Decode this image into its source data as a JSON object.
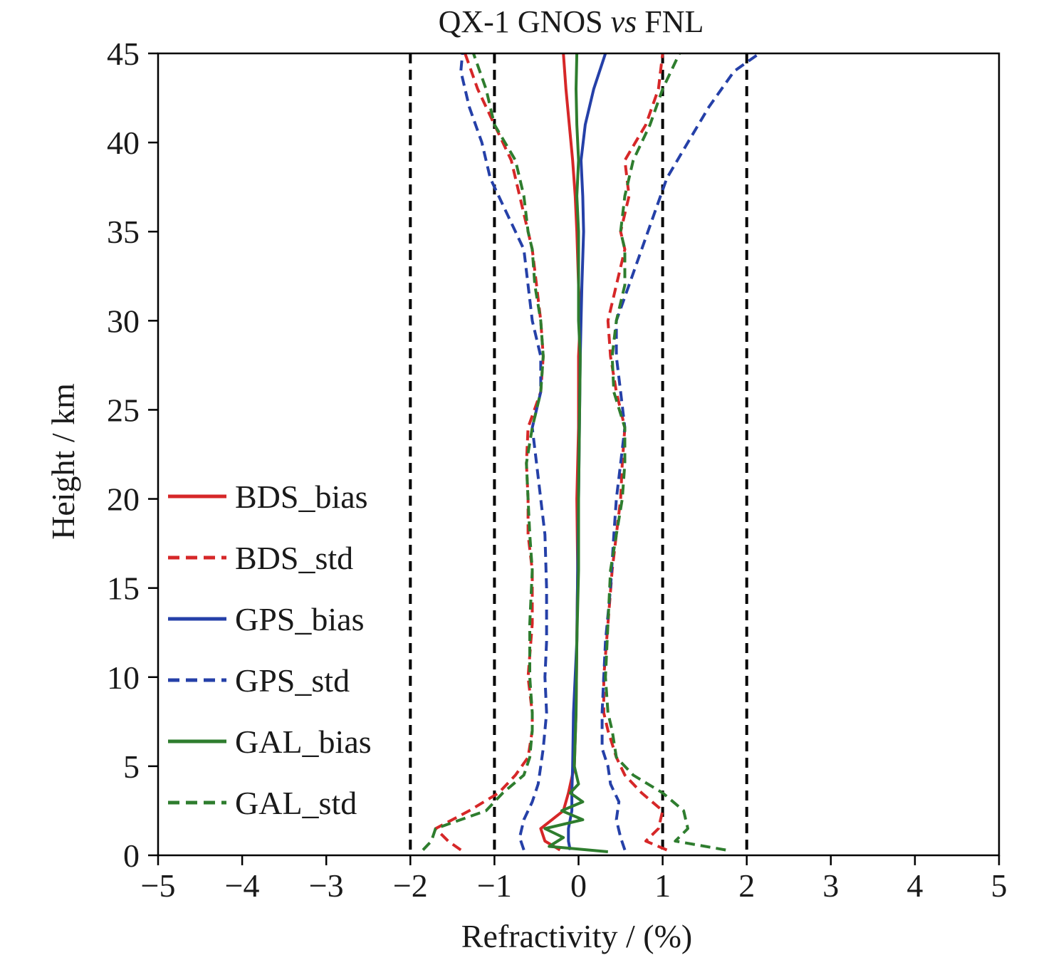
{
  "chart_data": {
    "type": "line",
    "title": "QX-1 GNOS vs FNL",
    "title_main": "QX-1 GNOS ",
    "title_italic": "vs",
    "title_tail": " FNL",
    "xlabel": "Refractivity / (%)",
    "ylabel": "Height / km",
    "xlim": [
      -5,
      5
    ],
    "ylim": [
      0,
      45
    ],
    "x_ticks": [
      -5,
      -4,
      -3,
      -2,
      -1,
      0,
      1,
      2,
      3,
      4,
      5
    ],
    "x_tick_labels": [
      "−5",
      "−4",
      "−3",
      "−2",
      "−1",
      "0",
      "1",
      "2",
      "3",
      "4",
      "5"
    ],
    "y_ticks": [
      0,
      5,
      10,
      15,
      20,
      25,
      30,
      35,
      40,
      45
    ],
    "y_tick_labels": [
      "0",
      "5",
      "10",
      "15",
      "20",
      "25",
      "30",
      "35",
      "40",
      "45"
    ],
    "reference_lines_x": [
      -2,
      -1,
      1,
      2
    ],
    "legend_position": "center-left",
    "series": [
      {
        "name": "BDS_bias",
        "color": "#d62728",
        "dash": false,
        "heights": [
          0.3,
          0.8,
          1.5,
          2.5,
          3.5,
          5,
          8,
          12,
          16,
          20,
          24,
          28,
          30,
          32,
          35,
          37,
          39,
          41,
          43,
          45
        ],
        "values": [
          -0.22,
          -0.4,
          -0.45,
          -0.18,
          -0.12,
          -0.05,
          -0.03,
          -0.02,
          -0.01,
          -0.02,
          0.0,
          0.0,
          0.02,
          0.0,
          -0.02,
          -0.04,
          -0.07,
          -0.11,
          -0.15,
          -0.18
        ]
      },
      {
        "name": "BDS_std",
        "color": "#d62728",
        "dash": true,
        "pos": {
          "heights": [
            0.3,
            0.8,
            1.5,
            2.5,
            3.5,
            4.5,
            5.5,
            7,
            8,
            10,
            13,
            16,
            18,
            20,
            22,
            24,
            26,
            28,
            30,
            32,
            34,
            35,
            37,
            39,
            41,
            43,
            45
          ],
          "values": [
            1.05,
            0.8,
            0.95,
            1.0,
            0.75,
            0.55,
            0.45,
            0.35,
            0.3,
            0.3,
            0.35,
            0.4,
            0.45,
            0.5,
            0.52,
            0.55,
            0.45,
            0.38,
            0.35,
            0.45,
            0.55,
            0.5,
            0.6,
            0.55,
            0.8,
            0.95,
            1.0
          ]
        },
        "neg": {
          "heights": [
            0.3,
            0.8,
            1.5,
            2.5,
            3.5,
            4.5,
            5.5,
            7,
            8,
            10,
            13,
            16,
            18,
            20,
            22,
            24,
            26,
            28,
            30,
            32,
            34,
            35,
            37,
            39,
            41,
            43,
            45
          ],
          "values": [
            -1.4,
            -1.55,
            -1.7,
            -1.3,
            -0.95,
            -0.75,
            -0.6,
            -0.55,
            -0.55,
            -0.6,
            -0.55,
            -0.55,
            -0.6,
            -0.6,
            -0.62,
            -0.6,
            -0.45,
            -0.42,
            -0.45,
            -0.5,
            -0.55,
            -0.6,
            -0.7,
            -0.8,
            -1.0,
            -1.2,
            -1.35
          ]
        }
      },
      {
        "name": "GPS_bias",
        "color": "#2540a8",
        "dash": false,
        "heights": [
          0.3,
          0.8,
          1.5,
          2.5,
          3.5,
          5,
          8,
          12,
          16,
          20,
          24,
          28,
          30,
          32,
          35,
          37,
          39,
          41,
          43,
          45
        ],
        "values": [
          -0.1,
          -0.12,
          -0.12,
          -0.08,
          -0.08,
          -0.07,
          -0.06,
          -0.02,
          -0.01,
          0.0,
          0.01,
          0.02,
          0.03,
          0.04,
          0.06,
          0.05,
          0.03,
          0.08,
          0.18,
          0.32
        ]
      },
      {
        "name": "GPS_std",
        "color": "#2540a8",
        "dash": true,
        "pos": {
          "heights": [
            0.3,
            1,
            2,
            3,
            4,
            5,
            6,
            8,
            10,
            12,
            15,
            18,
            20,
            22,
            24,
            26,
            28,
            30,
            32,
            34,
            36,
            38,
            40,
            42,
            44,
            45
          ],
          "values": [
            0.55,
            0.5,
            0.45,
            0.48,
            0.38,
            0.35,
            0.28,
            0.28,
            0.3,
            0.32,
            0.38,
            0.42,
            0.45,
            0.5,
            0.55,
            0.5,
            0.45,
            0.45,
            0.6,
            0.75,
            0.9,
            1.05,
            1.3,
            1.55,
            1.85,
            2.15
          ]
        },
        "neg": {
          "heights": [
            0.3,
            1,
            2,
            3,
            4,
            5,
            6,
            8,
            10,
            12,
            15,
            18,
            20,
            22,
            24,
            26,
            28,
            30,
            32,
            34,
            36,
            38,
            40,
            42,
            44,
            45
          ],
          "values": [
            -0.65,
            -0.7,
            -0.65,
            -0.55,
            -0.48,
            -0.45,
            -0.42,
            -0.38,
            -0.4,
            -0.38,
            -0.38,
            -0.4,
            -0.45,
            -0.5,
            -0.55,
            -0.45,
            -0.45,
            -0.55,
            -0.6,
            -0.65,
            -0.85,
            -1.05,
            -1.15,
            -1.3,
            -1.4,
            -1.38
          ]
        }
      },
      {
        "name": "GAL_bias",
        "color": "#2e7d2e",
        "dash": false,
        "heights": [
          0.2,
          0.5,
          1,
          1.5,
          2,
          2.5,
          3,
          3.5,
          4,
          5,
          8,
          12,
          16,
          20,
          24,
          28,
          30,
          32,
          35,
          37,
          39,
          41,
          43,
          45
        ],
        "values": [
          0.35,
          -0.35,
          -0.18,
          -0.4,
          0.05,
          -0.2,
          0.05,
          -0.1,
          0.0,
          -0.05,
          -0.03,
          -0.02,
          0.0,
          0.0,
          0.01,
          0.02,
          0.0,
          0.0,
          0.0,
          -0.02,
          0.0,
          -0.02,
          -0.03,
          -0.02
        ]
      },
      {
        "name": "GAL_std",
        "color": "#2e7d2e",
        "dash": true,
        "pos": {
          "heights": [
            0.3,
            0.8,
            1.5,
            2.5,
            3.5,
            4.5,
            5.5,
            7,
            8,
            10,
            13,
            16,
            18,
            20,
            22,
            24,
            26,
            28,
            30,
            32,
            34,
            35,
            37,
            39,
            41,
            43,
            45
          ],
          "values": [
            1.75,
            1.15,
            1.3,
            1.25,
            1.0,
            0.65,
            0.45,
            0.4,
            0.35,
            0.32,
            0.35,
            0.38,
            0.45,
            0.52,
            0.55,
            0.55,
            0.42,
            0.4,
            0.45,
            0.55,
            0.55,
            0.5,
            0.55,
            0.65,
            0.85,
            1.0,
            1.2
          ]
        },
        "neg": {
          "heights": [
            0.3,
            0.8,
            1.5,
            2.5,
            3.5,
            4.5,
            5.5,
            7,
            8,
            10,
            13,
            16,
            18,
            20,
            22,
            24,
            26,
            28,
            30,
            32,
            34,
            35,
            37,
            39,
            41,
            43,
            45
          ],
          "values": [
            -1.85,
            -1.75,
            -1.7,
            -1.1,
            -0.9,
            -0.65,
            -0.58,
            -0.55,
            -0.55,
            -0.58,
            -0.58,
            -0.55,
            -0.58,
            -0.6,
            -0.62,
            -0.55,
            -0.45,
            -0.42,
            -0.45,
            -0.52,
            -0.55,
            -0.6,
            -0.65,
            -0.75,
            -1.0,
            -1.1,
            -1.25
          ]
        }
      }
    ]
  }
}
